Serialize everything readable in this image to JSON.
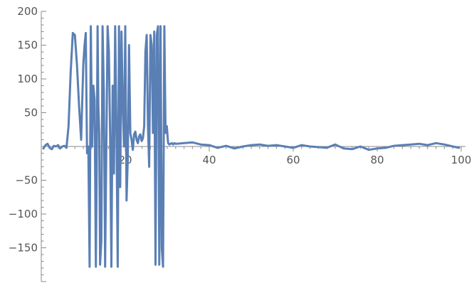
{
  "chart_data": {
    "type": "line",
    "title": "",
    "xlabel": "",
    "ylabel": "",
    "xlim": [
      0,
      100
    ],
    "ylim": [
      -200,
      200
    ],
    "x_ticks": [
      20,
      40,
      60,
      80,
      100
    ],
    "y_ticks": [
      -150,
      -100,
      -50,
      50,
      100,
      150,
      200
    ],
    "x_tick_labels": [
      "20",
      "40",
      "60",
      "80",
      "100"
    ],
    "y_tick_labels": [
      "−150",
      "−100",
      "−50",
      "50",
      "100",
      "150",
      "200"
    ],
    "grid": false,
    "axis_color": "#8a8a8a",
    "series": [
      {
        "color": "#5a7fb5",
        "x": [
          0.5,
          1.0,
          1.5,
          2.0,
          2.5,
          3.0,
          3.5,
          4.0,
          4.5,
          5.0,
          5.5,
          6.0,
          6.5,
          7.0,
          7.5,
          8.0,
          8.5,
          9.0,
          9.5,
          10.0,
          10.3,
          10.6,
          10.9,
          11.2,
          11.5,
          11.8,
          12.1,
          12.4,
          12.7,
          13.0,
          13.2,
          13.4,
          13.6,
          13.8,
          14.0,
          14.3,
          14.6,
          14.9,
          15.2,
          15.5,
          15.8,
          16.1,
          16.4,
          16.7,
          17.0,
          17.3,
          17.6,
          17.9,
          18.2,
          18.5,
          18.8,
          19.1,
          19.4,
          19.7,
          20.0,
          20.3,
          20.6,
          20.9,
          21.2,
          21.5,
          21.8,
          22.1,
          22.4,
          22.7,
          23.0,
          23.3,
          23.6,
          23.9,
          24.2,
          24.5,
          24.8,
          25.1,
          25.4,
          25.7,
          26.0,
          26.3,
          26.6,
          26.9,
          27.2,
          27.5,
          27.8,
          28.1,
          28.4,
          28.7,
          29.0,
          29.3,
          29.6,
          29.9,
          30.2,
          30.5,
          30.8,
          31.1,
          31.4,
          31.7,
          32.0,
          34.0,
          36.0,
          38.0,
          40.0,
          42.0,
          44.0,
          46.0,
          48.0,
          50.0,
          52.0,
          54.0,
          56.0,
          58.0,
          60.0,
          62.0,
          64.0,
          66.0,
          68.0,
          70.0,
          72.0,
          74.0,
          76.0,
          78.0,
          80.0,
          82.0,
          84.0,
          86.0,
          88.0,
          90.0,
          92.0,
          94.0,
          96.0,
          98.0,
          99.5
        ],
        "y": [
          -3,
          2,
          4,
          -2,
          -4,
          1,
          0,
          2,
          -3,
          0,
          1,
          -2,
          30,
          110,
          168,
          165,
          120,
          60,
          10,
          120,
          150,
          168,
          -10,
          0,
          -178,
          178,
          0,
          90,
          70,
          -178,
          -30,
          178,
          60,
          20,
          -175,
          -140,
          178,
          80,
          -178,
          0,
          178,
          140,
          10,
          -178,
          90,
          -40,
          178,
          30,
          -178,
          178,
          -60,
          170,
          60,
          0,
          178,
          -80,
          -20,
          150,
          20,
          10,
          -5,
          18,
          22,
          10,
          5,
          15,
          18,
          8,
          12,
          30,
          140,
          165,
          30,
          -30,
          165,
          150,
          20,
          170,
          -175,
          165,
          178,
          -175,
          178,
          -150,
          -178,
          178,
          20,
          30,
          5,
          3,
          4,
          5,
          3,
          5,
          4,
          5,
          6,
          3,
          2,
          -2,
          1,
          -3,
          0,
          2,
          3,
          1,
          2,
          0,
          -2,
          2,
          0,
          -1,
          -2,
          3,
          -3,
          -4,
          0,
          -5,
          -3,
          -2,
          1,
          2,
          3,
          4,
          2,
          5,
          3,
          0,
          -2
        ]
      }
    ]
  }
}
